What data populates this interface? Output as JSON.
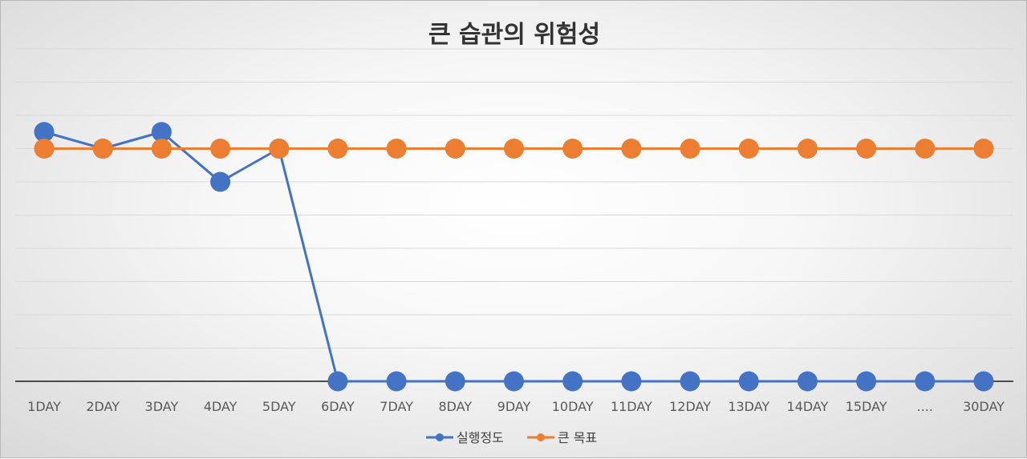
{
  "chart_data": {
    "type": "line",
    "title": "큰 습관의 위험성",
    "categories": [
      "1DAY",
      "2DAY",
      "3DAY",
      "4DAY",
      "5DAY",
      "6DAY",
      "7DAY",
      "8DAY",
      "9DAY",
      "10DAY",
      "11DAY",
      "12DAY",
      "13DAY",
      "14DAY",
      "15DAY",
      "....",
      "30DAY"
    ],
    "series": [
      {
        "name": "실행정도",
        "color": "#4472C4",
        "values": [
          75,
          70,
          75,
          60,
          70,
          0,
          0,
          0,
          0,
          0,
          0,
          0,
          0,
          0,
          0,
          0,
          0
        ]
      },
      {
        "name": "큰 목표",
        "color": "#ED7D31",
        "values": [
          70,
          70,
          70,
          70,
          70,
          70,
          70,
          70,
          70,
          70,
          70,
          70,
          70,
          70,
          70,
          70,
          70
        ]
      }
    ],
    "ylim": [
      0,
      100
    ],
    "grid": true,
    "legend_position": "bottom"
  }
}
